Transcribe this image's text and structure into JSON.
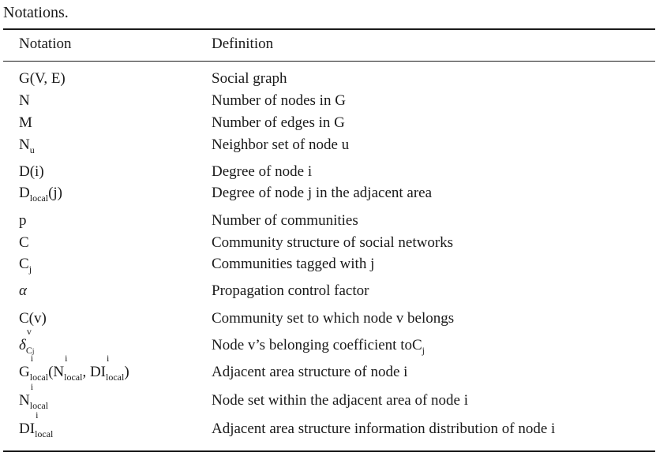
{
  "caption": "Notations.",
  "headers": {
    "notation": "Notation",
    "definition": "Definition"
  },
  "rows": [
    {
      "notation": "G(V, E)",
      "definition": "Social graph"
    },
    {
      "notation": "N",
      "definition": "Number of nodes in G"
    },
    {
      "notation": "M",
      "definition": "Number of edges in G"
    },
    {
      "notation": "Nu",
      "definition": "Neighbor set of node u"
    },
    {
      "notation": "D(i)",
      "definition": "Degree of node i"
    },
    {
      "notation": "Dlocal(j)",
      "definition": "Degree of node j in the adjacent area"
    },
    {
      "notation": "p",
      "definition": "Number of communities"
    },
    {
      "notation": "C",
      "definition": "Community structure of social networks"
    },
    {
      "notation": "Cj",
      "definition": "Communities tagged with j"
    },
    {
      "notation": "α",
      "definition": "Propagation control factor"
    },
    {
      "notation": "C(v)",
      "definition": "Community set to which node v belongs"
    },
    {
      "notation": "δvCj",
      "definition": "Node v’s belonging coefficient toCj"
    },
    {
      "notation": "Gilocal(Nilocal, DIilocal)",
      "definition": "Adjacent area structure of node i"
    },
    {
      "notation": "Nilocal",
      "definition": "Node set within the adjacent area of node i"
    },
    {
      "notation": "DIilocal",
      "definition": "Adjacent area structure information distribution of node i"
    }
  ]
}
